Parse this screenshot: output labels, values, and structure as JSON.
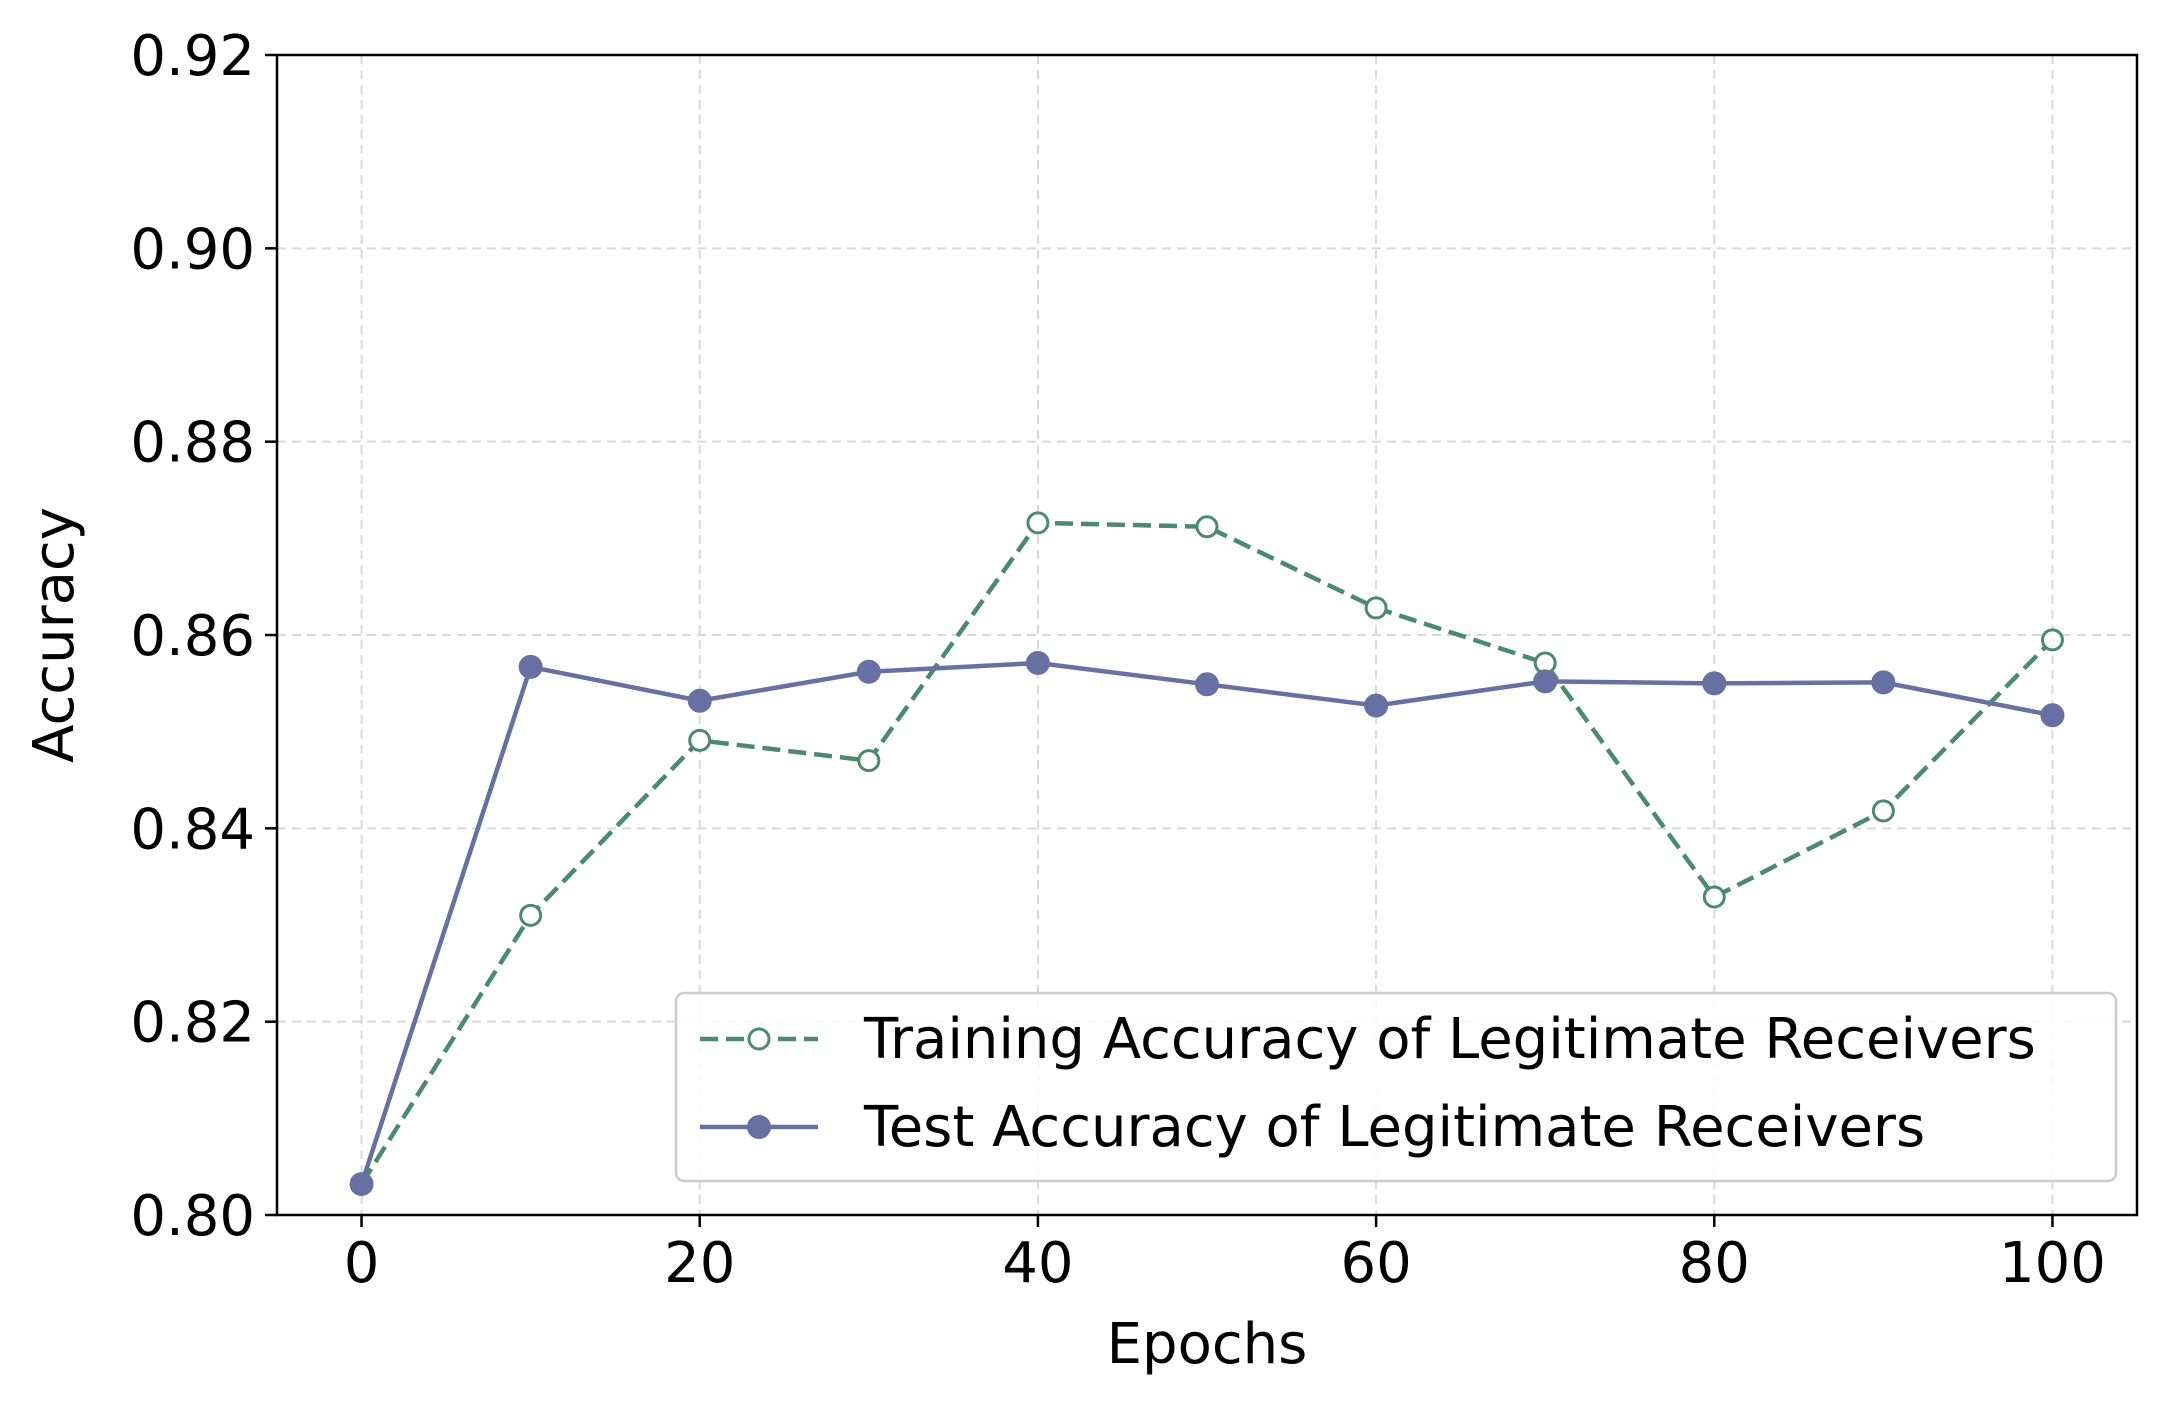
{
  "chart_data": {
    "type": "line",
    "title": "",
    "xlabel": "Epochs",
    "ylabel": "Accuracy",
    "xlim": [
      -5,
      105
    ],
    "ylim": [
      0.8,
      0.92
    ],
    "xticks": [
      0,
      20,
      40,
      60,
      80,
      100
    ],
    "xtick_labels": [
      "0",
      "20",
      "40",
      "60",
      "80",
      "100"
    ],
    "yticks": [
      0.8,
      0.82,
      0.84,
      0.86,
      0.88,
      0.9,
      0.92
    ],
    "ytick_labels": [
      "0.80",
      "0.82",
      "0.84",
      "0.86",
      "0.88",
      "0.90",
      "0.92"
    ],
    "grid": true,
    "legend_position": "lower-right",
    "x": [
      0,
      10,
      20,
      30,
      40,
      50,
      60,
      70,
      80,
      90,
      100
    ],
    "series": [
      {
        "name": "Training Accuracy of Legitimate Receivers",
        "values": [
          0.8032,
          0.831,
          0.8491,
          0.847,
          0.8716,
          0.8712,
          0.8628,
          0.8571,
          0.8329,
          0.8418,
          0.8595
        ],
        "color": "#4a8a6e",
        "line_style": "dashed",
        "marker": "open-circle"
      },
      {
        "name": "Test Accuracy of Legitimate Receivers",
        "values": [
          0.8032,
          0.8567,
          0.8532,
          0.8562,
          0.8571,
          0.8549,
          0.8527,
          0.8552,
          0.855,
          0.8551,
          0.8517
        ],
        "color": "#6670a3",
        "line_style": "solid",
        "marker": "filled-circle"
      }
    ]
  }
}
